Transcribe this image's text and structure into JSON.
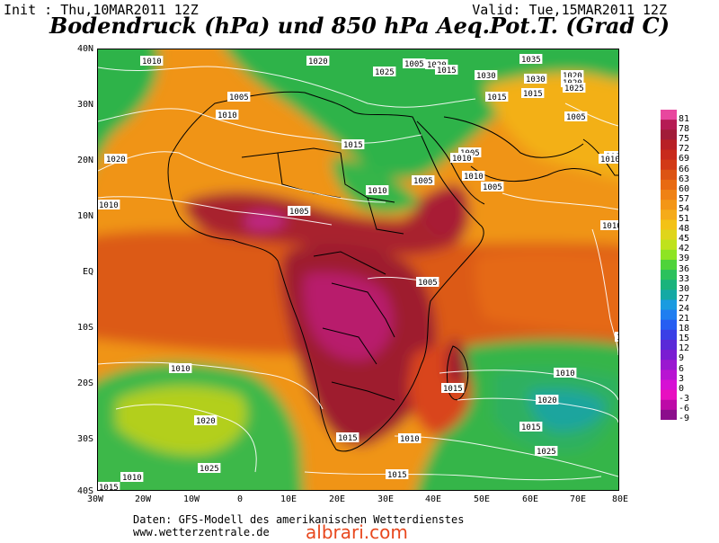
{
  "header": {
    "init": "Init : Thu,10MAR2011 12Z",
    "valid": "Valid: Tue,15MAR2011 12Z",
    "title": "Bodendruck (hPa) und 850 hPa Aeq.Pot.T. (Grad C)"
  },
  "map": {
    "lat_labels": [
      "40N",
      "30N",
      "20N",
      "10N",
      "EQ",
      "10S",
      "20S",
      "30S",
      "40S"
    ],
    "lon_labels": [
      "30W",
      "20W",
      "10W",
      "0",
      "10E",
      "20E",
      "30E",
      "40E",
      "50E",
      "60E",
      "70E",
      "80E"
    ],
    "isobar_labels": [
      "1010",
      "1020",
      "1025",
      "1030",
      "1035",
      "1015",
      "1005",
      "1020",
      "1015",
      "1020",
      "1020",
      "1025",
      "1030",
      "1015",
      "1015",
      "1005",
      "1005",
      "1020",
      "1010",
      "1005",
      "1010",
      "1010",
      "1005",
      "1010",
      "1005",
      "1015",
      "1010",
      "1005",
      "1005",
      "1010",
      "1015",
      "1010",
      "1010",
      "1015",
      "1020",
      "1020",
      "1015",
      "1025",
      "1025",
      "1015",
      "1015",
      "1010",
      "1010",
      "1015",
      "1010"
    ],
    "colors": {
      "ocean_background": "#d9560f",
      "hot_core": "#9e1b2f",
      "green_low_theta": "#23b14d",
      "orange": "#f29a16",
      "isobar_line": "#ffffff"
    }
  },
  "colorbar": {
    "labels": [
      "81",
      "78",
      "75",
      "72",
      "69",
      "66",
      "63",
      "60",
      "57",
      "54",
      "51",
      "48",
      "45",
      "42",
      "39",
      "36",
      "33",
      "30",
      "27",
      "24",
      "21",
      "18",
      "15",
      "12",
      "9",
      "6",
      "3",
      "0",
      "-3",
      "-6",
      "-9"
    ],
    "colors": [
      "#e8479e",
      "#b51c54",
      "#a11c38",
      "#b82025",
      "#c82a1c",
      "#d23a17",
      "#dc5414",
      "#e86a12",
      "#ef8215",
      "#f39617",
      "#f5ab1a",
      "#f3c215",
      "#dfd51a",
      "#bfe21c",
      "#8ee424",
      "#4fd33a",
      "#2bc15c",
      "#19b37c",
      "#14a9a4",
      "#1a9be0",
      "#1f7ef0",
      "#265ef2",
      "#3a3fe6",
      "#5a2ad8",
      "#7a1dd2",
      "#9a17d0",
      "#b814d2",
      "#d611d4",
      "#e80fc0",
      "#bd0aa7",
      "#8b0e8c"
    ]
  },
  "footer": {
    "line1": "Daten: GFS-Modell des amerikanischen Wetterdienstes",
    "line2": "www.wetterzentrale.de"
  },
  "watermark": "albrari.com"
}
